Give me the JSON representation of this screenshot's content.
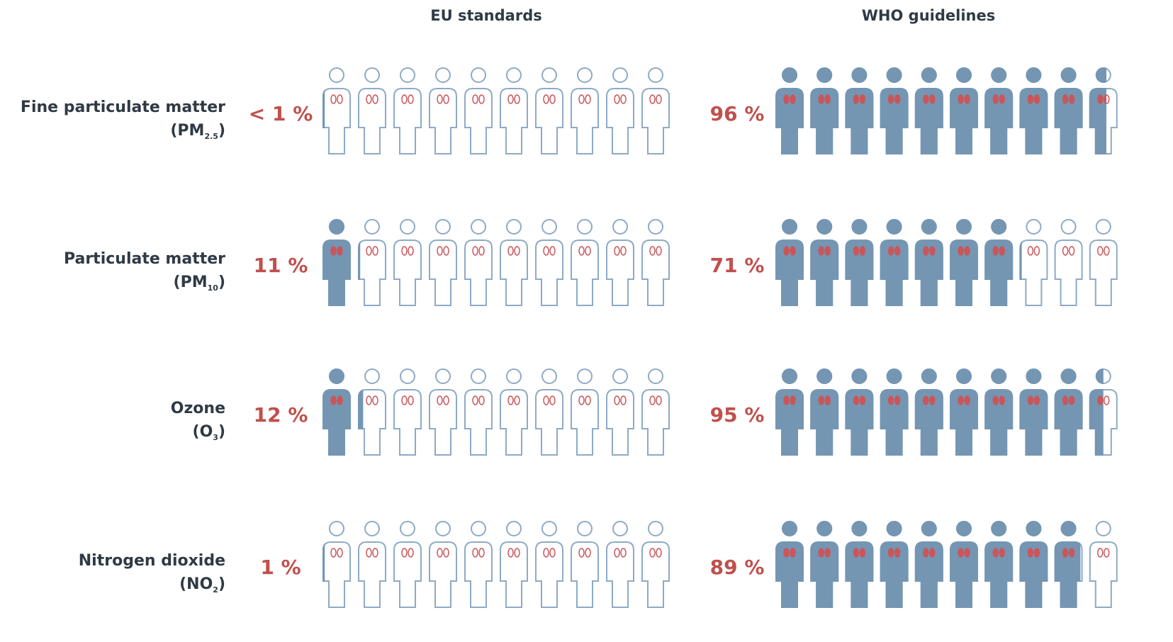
{
  "chart_data": {
    "type": "pictogram",
    "columns": [
      "EU standards",
      "WHO guidelines"
    ],
    "xlim": [
      0,
      100
    ],
    "icons": 10,
    "colors": {
      "filled": "#7496b3",
      "outline": "#8eaac6",
      "lungs": "#c9565a",
      "value_text": "#c0504d",
      "label_text": "#2f3a45"
    },
    "categories": [
      {
        "label": "Fine particulate matter",
        "formula": {
          "open": "(PM",
          "sub": "2.5",
          "close": ")"
        }
      },
      {
        "label": "Particulate matter",
        "formula": {
          "open": "(PM",
          "sub": "10",
          "close": ")"
        }
      },
      {
        "label": "Ozone",
        "formula": {
          "open": "(O",
          "sub": "3",
          "close": ")"
        }
      },
      {
        "label": "Nitrogen dioxide",
        "formula": {
          "open": "(NO",
          "sub": "2",
          "close": ")"
        }
      }
    ],
    "series": [
      {
        "name": "EU standards",
        "values": [
          1,
          11,
          12,
          1
        ],
        "value_labels": [
          "< 1 %",
          "11 %",
          "12 %",
          "1 %"
        ]
      },
      {
        "name": "WHO guidelines",
        "values": [
          96,
          71,
          95,
          89
        ],
        "value_labels": [
          "96 %",
          "71 %",
          "95 %",
          "89 %"
        ]
      }
    ]
  }
}
